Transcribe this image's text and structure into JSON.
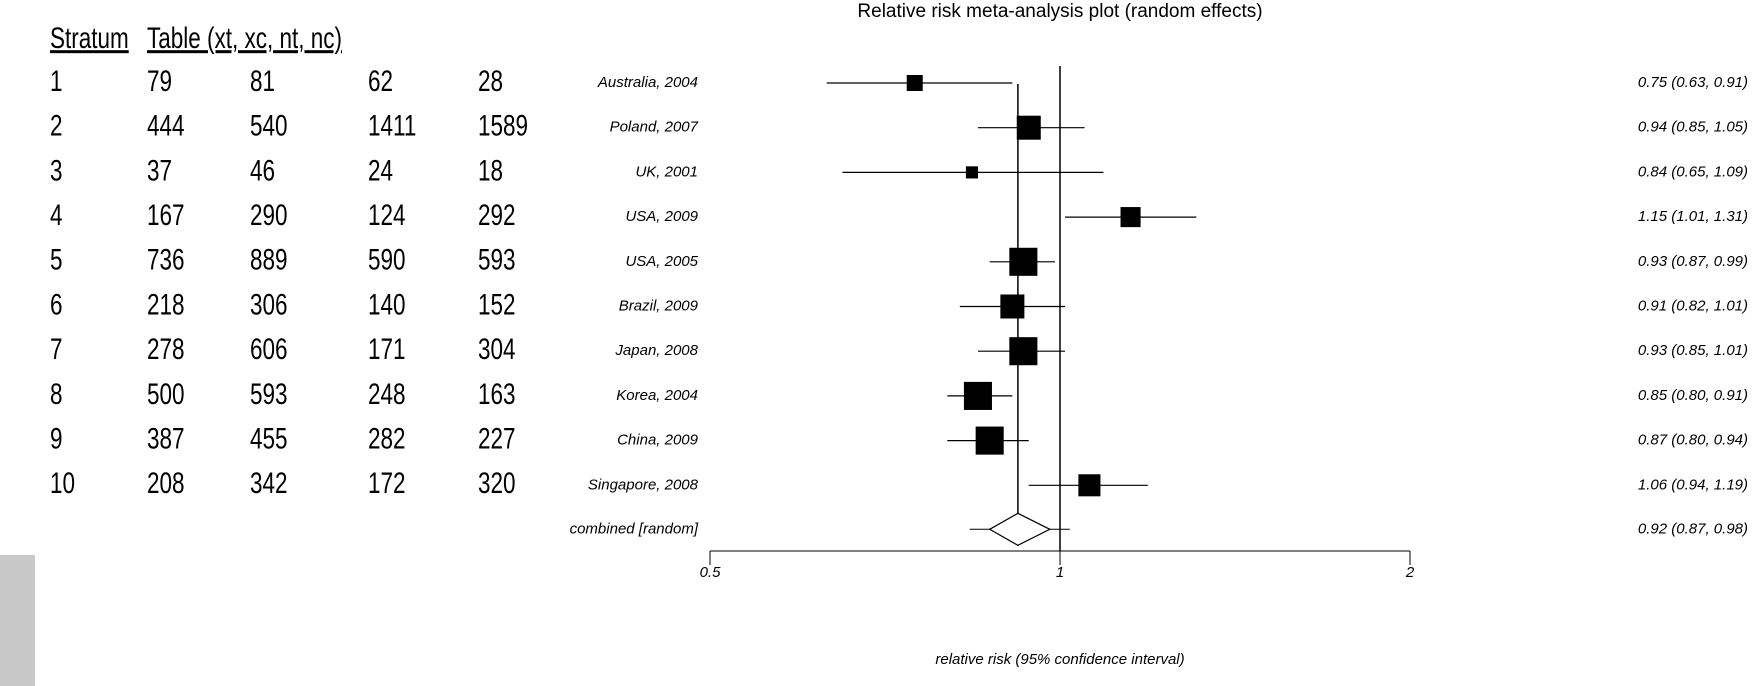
{
  "table": {
    "headers": [
      "Stratum",
      "Table (xt, xc, nt, nc)"
    ],
    "rows": [
      [
        "1",
        "79",
        "81",
        "62",
        "28"
      ],
      [
        "2",
        "444",
        "540",
        "1411",
        "1589"
      ],
      [
        "3",
        "37",
        "46",
        "24",
        "18"
      ],
      [
        "4",
        "167",
        "290",
        "124",
        "292"
      ],
      [
        "5",
        "736",
        "889",
        "590",
        "593"
      ],
      [
        "6",
        "218",
        "306",
        "140",
        "152"
      ],
      [
        "7",
        "278",
        "606",
        "171",
        "304"
      ],
      [
        "8",
        "500",
        "593",
        "248",
        "163"
      ],
      [
        "9",
        "387",
        "455",
        "282",
        "227"
      ],
      [
        "10",
        "208",
        "342",
        "172",
        "320"
      ]
    ]
  },
  "chart_data": {
    "type": "forest",
    "title": "Relative risk meta-analysis plot (random effects)",
    "x_label": "relative risk (95% confidence interval)",
    "categories": [
      "Australia, 2004",
      "Poland, 2007",
      "UK, 2001",
      "USA, 2009",
      "USA, 2005",
      "Brazil, 2009",
      "Japan, 2008",
      "Korea, 2004",
      "China, 2009",
      "Singapore, 2008"
    ],
    "values": [
      0.75,
      0.94,
      0.84,
      1.15,
      0.93,
      0.91,
      0.93,
      0.85,
      0.87,
      1.06
    ],
    "lower": [
      0.63,
      0.85,
      0.65,
      1.01,
      0.87,
      0.82,
      0.85,
      0.8,
      0.8,
      0.94
    ],
    "upper": [
      0.91,
      1.05,
      1.09,
      1.31,
      0.99,
      1.01,
      1.01,
      0.91,
      0.94,
      1.19
    ],
    "weights": [
      4,
      9,
      2.3,
      6.3,
      12.3,
      9,
      12.3,
      12.3,
      12.3,
      7.6
    ],
    "value_labels": [
      "0.75 (0.63, 0.91)",
      "0.94 (0.85, 1.05)",
      "0.84 (0.65, 1.09)",
      "1.15 (1.01, 1.31)",
      "0.93 (0.87, 0.99)",
      "0.91 (0.82, 1.01)",
      "0.93 (0.85, 1.01)",
      "0.85 (0.80, 0.91)",
      "0.87 (0.80, 0.94)",
      "1.06 (0.94, 1.19)"
    ],
    "combined": {
      "label": "combined [random]",
      "value": 0.92,
      "lower": 0.87,
      "upper": 0.98,
      "value_label": "0.92 (0.87, 0.98)"
    },
    "xlim": [
      0.5,
      2
    ],
    "xticks": [
      0.5,
      1,
      2
    ],
    "log_scale": true,
    "reference": 1,
    "color": "#000000"
  }
}
